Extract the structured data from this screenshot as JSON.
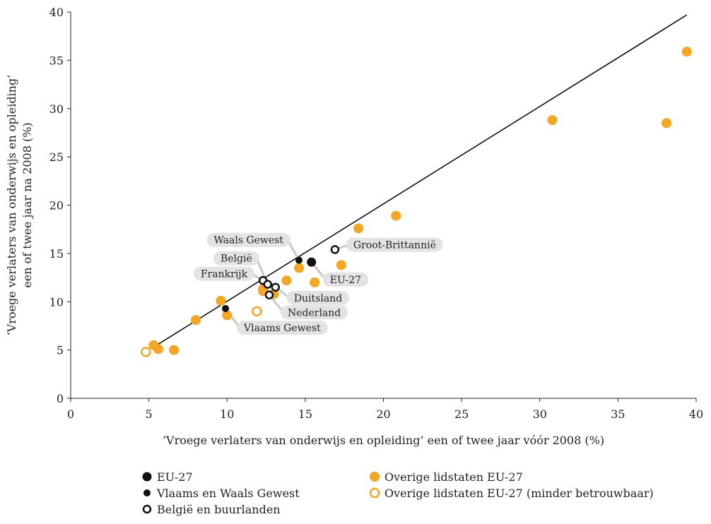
{
  "chart_data": {
    "type": "scatter",
    "title": "",
    "xlabel": "‘Vroege verlaters van onderwijs en opleiding’ een of twee jaar vóór 2008 (%)",
    "ylabel_lines": [
      "‘Vroege verlaters van onderwijs en opleiding’",
      "een of twee jaar na 2008 (%)"
    ],
    "xlim": [
      0,
      40
    ],
    "ylim": [
      0,
      40
    ],
    "x_ticks": [
      0,
      5,
      10,
      15,
      20,
      25,
      30,
      35,
      40
    ],
    "y_ticks": [
      0,
      5,
      10,
      15,
      20,
      25,
      30,
      35,
      40
    ],
    "grid": false,
    "reference_line": {
      "from": [
        5.2,
        5.2
      ],
      "to": [
        39.4,
        39.7
      ],
      "color": "#000000"
    },
    "colors": {
      "orange": "#F5A623",
      "black": "#111111",
      "label_bg": "#E3E3E3",
      "leader": "#C8C8C8"
    },
    "series": [
      {
        "name": "EU-27",
        "style": "black-large",
        "points": [
          {
            "x": 15.4,
            "y": 14.1
          }
        ]
      },
      {
        "name": "Vlaams en Waals Gewest",
        "style": "black-small",
        "points": [
          {
            "x": 14.6,
            "y": 14.3
          },
          {
            "x": 9.9,
            "y": 9.3
          }
        ]
      },
      {
        "name": "België en buurlanden",
        "style": "open-black",
        "points": [
          {
            "x": 16.9,
            "y": 15.4
          },
          {
            "x": 12.3,
            "y": 12.2
          },
          {
            "x": 12.6,
            "y": 11.8
          },
          {
            "x": 13.1,
            "y": 11.5
          },
          {
            "x": 12.7,
            "y": 10.7
          }
        ]
      },
      {
        "name": "Overige lidstaten EU-27",
        "style": "orange",
        "points": [
          {
            "x": 39.4,
            "y": 35.9
          },
          {
            "x": 30.8,
            "y": 28.8
          },
          {
            "x": 38.1,
            "y": 28.5
          },
          {
            "x": 20.8,
            "y": 18.9
          },
          {
            "x": 18.4,
            "y": 17.6
          },
          {
            "x": 17.3,
            "y": 13.8
          },
          {
            "x": 14.6,
            "y": 13.5
          },
          {
            "x": 15.6,
            "y": 12.0
          },
          {
            "x": 13.8,
            "y": 12.2
          },
          {
            "x": 12.3,
            "y": 11.3
          },
          {
            "x": 12.3,
            "y": 11.1
          },
          {
            "x": 13.0,
            "y": 10.8
          },
          {
            "x": 9.6,
            "y": 10.1
          },
          {
            "x": 10.0,
            "y": 8.6
          },
          {
            "x": 8.0,
            "y": 8.1
          },
          {
            "x": 5.3,
            "y": 5.5
          },
          {
            "x": 5.6,
            "y": 5.1
          },
          {
            "x": 6.6,
            "y": 5.0
          }
        ]
      },
      {
        "name": "Overige lidstaten EU-27 (minder betrouwbaar)",
        "style": "open-orange",
        "points": [
          {
            "x": 11.9,
            "y": 9.0
          },
          {
            "x": 4.8,
            "y": 4.8
          }
        ]
      }
    ],
    "annotations": [
      {
        "text": "Waals Gewest",
        "x": 14.6,
        "y": 14.3,
        "side": "left",
        "ty": 16.4
      },
      {
        "text": "België",
        "x": 12.6,
        "y": 11.8,
        "side": "left",
        "ty": 14.5
      },
      {
        "text": "Frankrijk",
        "x": 12.3,
        "y": 12.2,
        "side": "left",
        "ty": 12.9
      },
      {
        "text": "Groot-Brittannië",
        "x": 16.9,
        "y": 15.4,
        "side": "right",
        "ty": 15.9
      },
      {
        "text": "EU-27",
        "x": 15.4,
        "y": 14.1,
        "side": "right",
        "ty": 12.3
      },
      {
        "text": "Duitsland",
        "x": 13.1,
        "y": 11.5,
        "side": "right",
        "ty": 10.4
      },
      {
        "text": "Nederland",
        "x": 12.7,
        "y": 10.7,
        "side": "right",
        "ty": 8.9
      },
      {
        "text": "Vlaams Gewest",
        "x": 9.9,
        "y": 9.3,
        "side": "right",
        "ty": 7.3
      }
    ],
    "legend": {
      "placement": "bottom",
      "entries": [
        {
          "label": "EU-27",
          "style": "black-large"
        },
        {
          "label": "Overige lidstaten EU-27",
          "style": "orange"
        },
        {
          "label": "Vlaams en Waals Gewest",
          "style": "black-small"
        },
        {
          "label": "Overige lidstaten EU-27 (minder betrouwbaar)",
          "style": "open-orange"
        },
        {
          "label": "België en buurlanden",
          "style": "open-black"
        }
      ]
    }
  }
}
